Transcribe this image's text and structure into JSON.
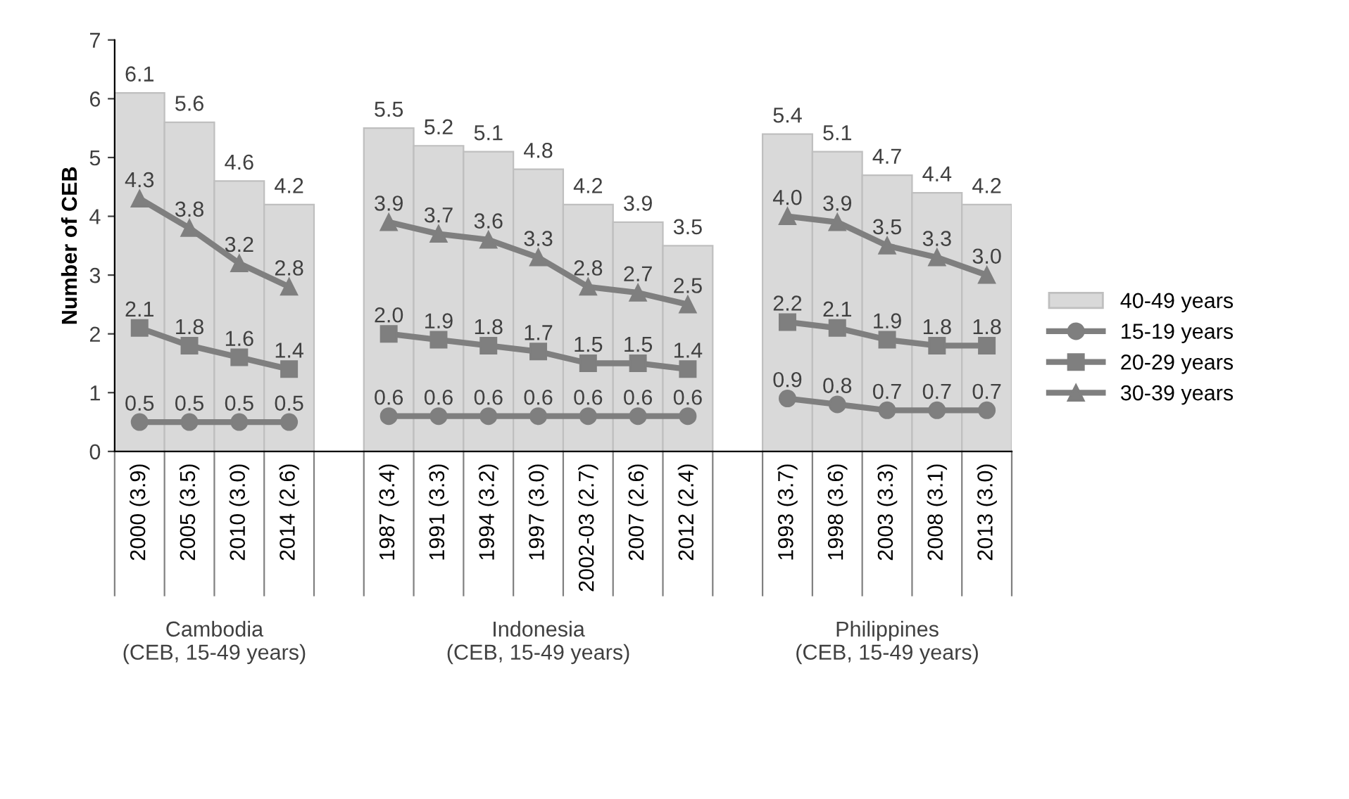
{
  "chart_data": {
    "type": "bar",
    "ylabel": "Number of CEB",
    "categories": [
      "2000 (3.9)",
      "2005 (3.5)",
      "2010 (3.0)",
      "2014 (2.6)",
      null,
      "1987 (3.4)",
      "1991 (3.3)",
      "1994 (3.2)",
      "1997 (3.0)",
      "2002-03 (2.7)",
      "2007 (2.6)",
      "2012 (2.4)",
      null,
      "1993 (3.7)",
      "1998 (3.6)",
      "2003 (3.3)",
      "2008 (3.1)",
      "2013 (3.0)"
    ],
    "series": [
      {
        "name": "40-49 years",
        "color": "#d9d9d9",
        "values": [
          6.1,
          5.6,
          4.6,
          4.2,
          null,
          5.5,
          5.2,
          5.1,
          4.8,
          4.2,
          3.9,
          3.5,
          null,
          5.4,
          5.1,
          4.7,
          4.4,
          4.2
        ],
        "value_labels": [
          "6.1",
          "5.6",
          "4.6",
          "4.2",
          null,
          "5.5",
          "5.2",
          "5.1",
          "4.8",
          "4.2",
          "3.9",
          "3.5",
          null,
          "5.4",
          "5.1",
          "4.7",
          "4.4",
          "4.2"
        ]
      },
      {
        "name": "15-19 years",
        "type": "line",
        "marker": "circle",
        "color": "#7f7f7f",
        "values": [
          0.5,
          0.5,
          0.5,
          0.5,
          null,
          0.6,
          0.6,
          0.6,
          0.6,
          0.6,
          0.6,
          0.6,
          null,
          0.9,
          0.8,
          0.7,
          0.7,
          0.7
        ],
        "value_labels": [
          "0.5",
          "0.5",
          "0.5",
          "0.5",
          null,
          "0.6",
          "0.6",
          "0.6",
          "0.6",
          "0.6",
          "0.6",
          "0.6",
          null,
          "0.9",
          "0.8",
          "0.7",
          "0.7",
          "0.7"
        ]
      },
      {
        "name": "20-29 years",
        "type": "line",
        "marker": "square",
        "color": "#7f7f7f",
        "values": [
          2.1,
          1.8,
          1.6,
          1.4,
          null,
          2.0,
          1.9,
          1.8,
          1.7,
          1.5,
          1.5,
          1.4,
          null,
          2.2,
          2.1,
          1.9,
          1.8,
          1.8
        ],
        "value_labels": [
          "2.1",
          "1.8",
          "1.6",
          "1.4",
          null,
          "2.0",
          "1.9",
          "1.8",
          "1.7",
          "1.5",
          "1.5",
          "1.4",
          null,
          "2.2",
          "2.1",
          "1.9",
          "1.8",
          "1.8"
        ]
      },
      {
        "name": "30-39 years",
        "type": "line",
        "marker": "triangle",
        "color": "#7f7f7f",
        "values": [
          4.3,
          3.8,
          3.2,
          2.8,
          null,
          3.9,
          3.7,
          3.6,
          3.3,
          2.8,
          2.7,
          2.5,
          null,
          4.0,
          3.9,
          3.5,
          3.3,
          3.0
        ],
        "value_labels": [
          "4.3",
          "3.8",
          "3.2",
          "2.8",
          null,
          "3.9",
          "3.7",
          "3.6",
          "3.3",
          "2.8",
          "2.7",
          "2.5",
          null,
          "4.0",
          "3.9",
          "3.5",
          "3.3",
          "3.0"
        ]
      }
    ],
    "ylim": [
      0,
      7
    ],
    "yticks": [
      0,
      1,
      2,
      3,
      4,
      5,
      6,
      7
    ],
    "grid": false,
    "legend": "right",
    "annotations": [
      "Cambodia\n(CEB, 15-49 years)",
      "Indonesia\n(CEB, 15-49 years)",
      "Philippines\n(CEB, 15-49 years)"
    ]
  }
}
